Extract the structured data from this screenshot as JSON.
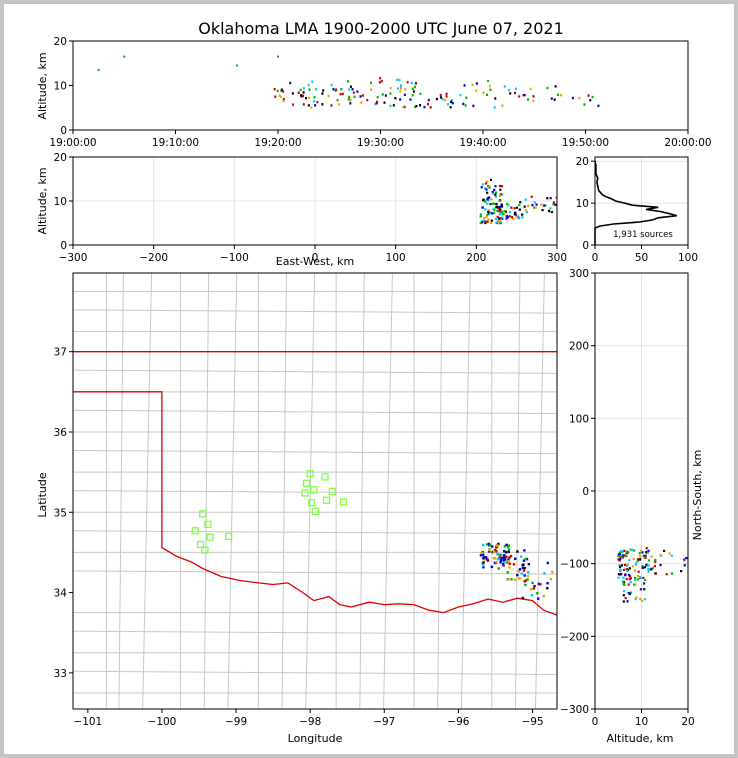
{
  "chart_data": [
    {
      "type": "scatter",
      "panel": "altitude-vs-time",
      "title": "Oklahoma LMA 1900-2000 UTC June 07, 2021",
      "xlabel": "",
      "ylabel": "Altitude, km",
      "xlim": [
        "19:00:00",
        "20:00:00"
      ],
      "ylim": [
        0,
        20
      ],
      "x_ticks": [
        "19:00:00",
        "19:10:00",
        "19:20:00",
        "19:30:00",
        "19:40:00",
        "19:50:00",
        "20:00:00"
      ],
      "y_ticks": [
        0,
        10,
        20
      ],
      "grid": false,
      "color_scale": [
        "#0000c8",
        "#00c8ff",
        "#00b400",
        "#f0a000",
        "#c80000",
        "#000000"
      ],
      "point_groups": [
        {
          "t_min": 19.5,
          "t_max": 20.5,
          "alt_min": 7,
          "alt_max": 9.5,
          "n": 8
        },
        {
          "t_min": 20.5,
          "t_max": 28.5,
          "alt_min": 5,
          "alt_max": 11,
          "n": 55
        },
        {
          "t_min": 28.5,
          "t_max": 33.5,
          "alt_min": 5,
          "alt_max": 12,
          "n": 40
        },
        {
          "t_min": 33.5,
          "t_max": 36.5,
          "alt_min": 5,
          "alt_max": 9,
          "n": 14
        },
        {
          "t_min": 36.5,
          "t_max": 42.5,
          "alt_min": 5,
          "alt_max": 11,
          "n": 22
        },
        {
          "t_min": 42.5,
          "t_max": 47.5,
          "alt_min": 6,
          "alt_max": 10,
          "n": 16
        },
        {
          "t_min": 47.5,
          "t_max": 51.5,
          "alt_min": 5,
          "alt_max": 8,
          "n": 8
        }
      ],
      "isolated_points": [
        {
          "time_min": 5,
          "alt_km": 16.5
        },
        {
          "time_min": 16,
          "alt_km": 14.5
        },
        {
          "time_min": 20,
          "alt_km": 16.5
        },
        {
          "time_min": 2.5,
          "alt_km": 13.5
        },
        {
          "time_min": 40.5,
          "alt_km": 11
        }
      ]
    },
    {
      "type": "scatter",
      "panel": "altitude-vs-east-west",
      "xlabel": "East-West, km",
      "ylabel": "Altitude, km",
      "xlim": [
        -300,
        300
      ],
      "ylim": [
        0,
        20
      ],
      "x_ticks": [
        -300,
        -200,
        -100,
        0,
        100,
        200,
        300
      ],
      "y_ticks": [
        0,
        10,
        20
      ],
      "grid": true,
      "point_groups": [
        {
          "x_min": 205,
          "x_max": 232,
          "alt_min": 5,
          "alt_max": 15,
          "n": 90
        },
        {
          "x_min": 228,
          "x_max": 262,
          "alt_min": 6,
          "alt_max": 10,
          "n": 40
        },
        {
          "x_min": 258,
          "x_max": 300,
          "alt_min": 7.5,
          "alt_max": 11,
          "n": 24
        }
      ]
    },
    {
      "type": "line",
      "panel": "altitude-histogram",
      "annotation": "1,931 sources",
      "xlim": [
        0,
        100
      ],
      "ylim": [
        0,
        21
      ],
      "x_ticks": [
        0,
        50,
        100
      ],
      "y_ticks": [
        0,
        10,
        20
      ],
      "grid": true,
      "series": [
        {
          "altitude_km": [
            0,
            4,
            4.5,
            5,
            5.5,
            6,
            6.5,
            7,
            7.5,
            8,
            8.5,
            9,
            9.5,
            10,
            10.5,
            11,
            11.5,
            12,
            13,
            14,
            15,
            16,
            17,
            18,
            19,
            20
          ],
          "count": [
            0,
            0,
            5,
            20,
            48,
            62,
            68,
            88,
            80,
            70,
            55,
            68,
            40,
            32,
            22,
            18,
            12,
            8,
            4,
            3,
            2,
            3,
            1,
            1,
            1,
            0
          ]
        }
      ]
    },
    {
      "type": "scatter",
      "panel": "plan-view-map",
      "xlabel": "Longitude",
      "ylabel": "Latitude",
      "xlim": [
        -101.2,
        -94.67
      ],
      "ylim": [
        32.55,
        37.98
      ],
      "x_ticks": [
        -101,
        -100,
        -99,
        -98,
        -97,
        -96,
        -95
      ],
      "y_ticks": [
        33,
        34,
        35,
        36,
        37
      ],
      "state_border_color": "#e00000",
      "county_line_color": "#c8c8c8",
      "station_color": "#80ff40",
      "stations": [
        {
          "lon": -99.45,
          "lat": 34.98
        },
        {
          "lon": -99.38,
          "lat": 34.85
        },
        {
          "lon": -99.55,
          "lat": 34.77
        },
        {
          "lon": -99.35,
          "lat": 34.69
        },
        {
          "lon": -99.1,
          "lat": 34.7
        },
        {
          "lon": -99.48,
          "lat": 34.6
        },
        {
          "lon": -99.42,
          "lat": 34.53
        },
        {
          "lon": -98.0,
          "lat": 35.48
        },
        {
          "lon": -98.05,
          "lat": 35.36
        },
        {
          "lon": -97.8,
          "lat": 35.44
        },
        {
          "lon": -98.07,
          "lat": 35.24
        },
        {
          "lon": -97.95,
          "lat": 35.28
        },
        {
          "lon": -97.7,
          "lat": 35.26
        },
        {
          "lon": -97.55,
          "lat": 35.13
        },
        {
          "lon": -97.78,
          "lat": 35.15
        },
        {
          "lon": -97.98,
          "lat": 35.12
        },
        {
          "lon": -97.93,
          "lat": 35.01
        }
      ],
      "point_groups": [
        {
          "lon_min": -95.7,
          "lon_max": -95.3,
          "lat_min": 34.3,
          "lat_max": 34.62,
          "n": 70
        },
        {
          "lon_min": -95.4,
          "lon_max": -95.05,
          "lat_min": 34.15,
          "lat_max": 34.55,
          "n": 35
        },
        {
          "lon_min": -95.2,
          "lon_max": -94.72,
          "lat_min": 33.92,
          "lat_max": 34.38,
          "n": 24
        }
      ]
    },
    {
      "type": "scatter",
      "panel": "north-south-vs-altitude",
      "xlabel": "Altitude, km",
      "ylabel": "North-South, km",
      "xlim": [
        0,
        20
      ],
      "ylim": [
        -300,
        300
      ],
      "x_ticks": [
        0,
        10,
        20
      ],
      "y_ticks": [
        -300,
        -200,
        -100,
        0,
        100,
        200,
        300
      ],
      "grid": true,
      "point_groups": [
        {
          "alt_min": 5,
          "alt_max": 13,
          "ns_min": -120,
          "ns_max": -80,
          "n": 90
        },
        {
          "alt_min": 6,
          "alt_max": 11,
          "ns_min": -152,
          "ns_max": -120,
          "n": 30
        },
        {
          "alt_min": 11,
          "alt_max": 20,
          "ns_min": -115,
          "ns_max": -78,
          "n": 20
        }
      ]
    }
  ]
}
